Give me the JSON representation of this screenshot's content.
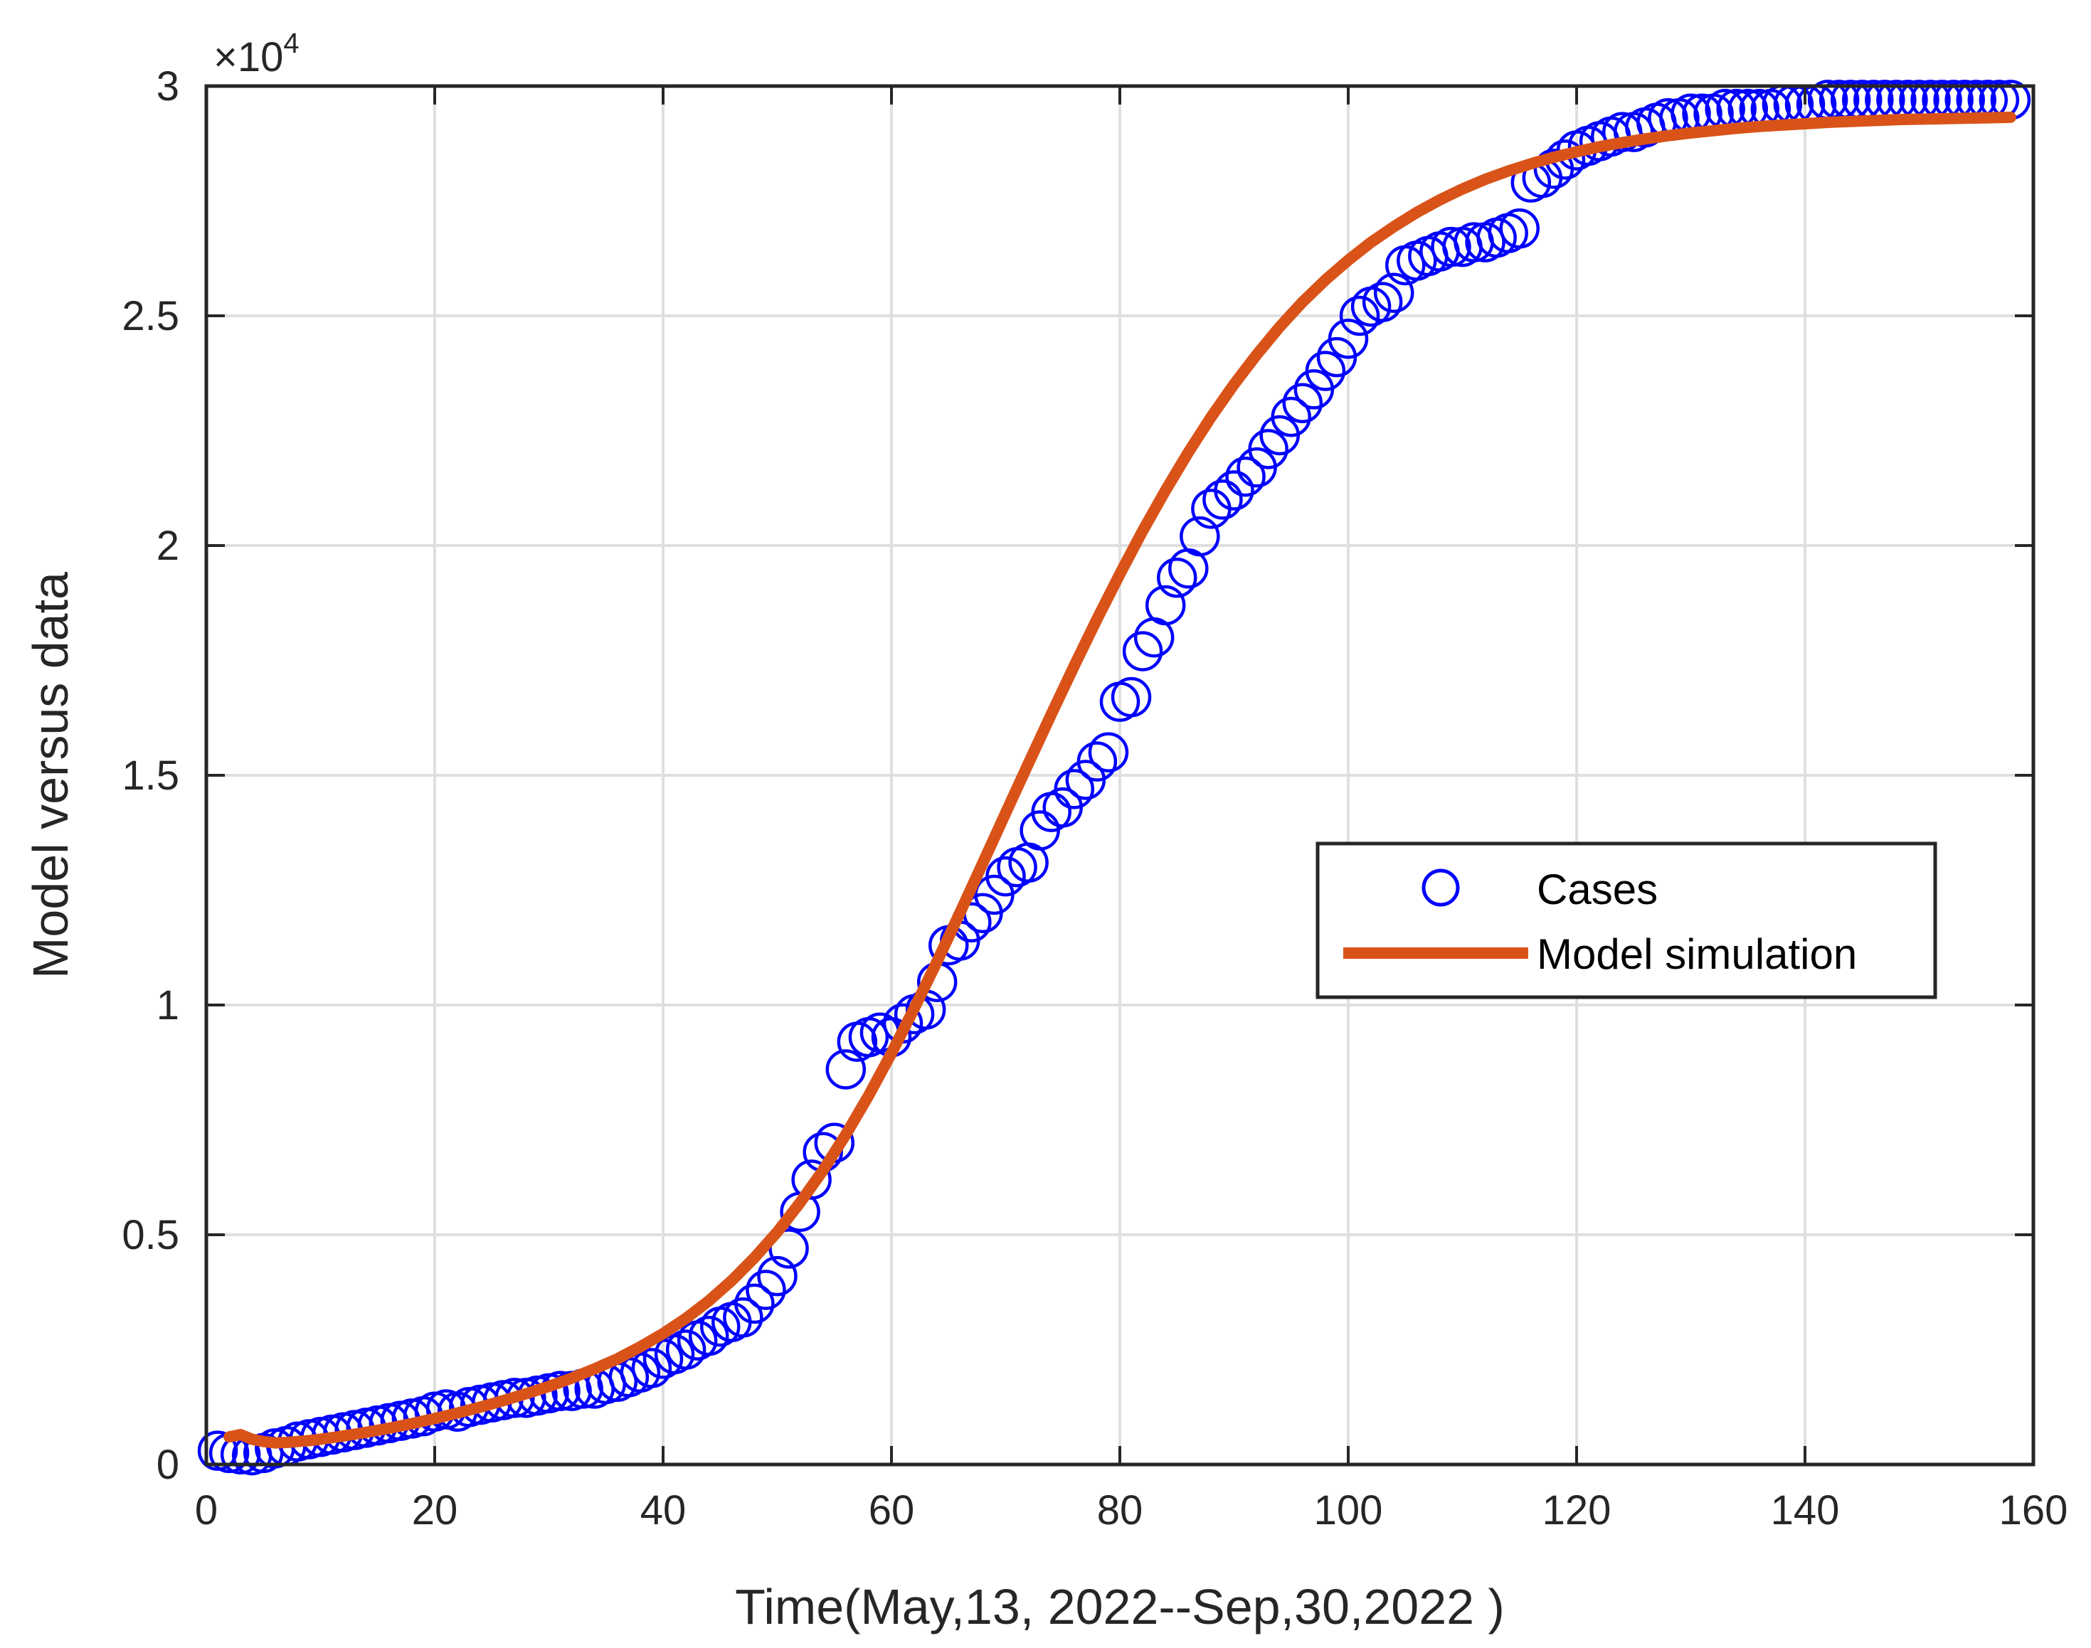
{
  "chart_data": {
    "type": "line",
    "xlabel": "Time(May,13, 2022--Sep,30,2022 )",
    "ylabel": "Model versus data",
    "xlim": [
      0,
      160
    ],
    "ylim": [
      0,
      30000
    ],
    "xticks": [
      0,
      20,
      40,
      60,
      80,
      100,
      120,
      140,
      160
    ],
    "xtick_labels": [
      "0",
      "20",
      "40",
      "60",
      "80",
      "100",
      "120",
      "140",
      "160"
    ],
    "yticks": [
      0,
      5000,
      10000,
      15000,
      20000,
      25000,
      30000
    ],
    "ytick_labels": [
      "0",
      "0.5",
      "1",
      "1.5",
      "2",
      "2.5",
      "3"
    ],
    "y_exponent": {
      "base": "×10",
      "power": "4"
    },
    "grid": true,
    "legend": {
      "location": "center-right"
    },
    "series": [
      {
        "name": "Cases",
        "style": "markers",
        "marker": "circle",
        "color": "#0000ff",
        "x": [
          1,
          2,
          3,
          4,
          5,
          6,
          7,
          8,
          9,
          10,
          11,
          12,
          13,
          14,
          15,
          16,
          17,
          18,
          19,
          20,
          21,
          22,
          23,
          24,
          25,
          26,
          27,
          28,
          29,
          30,
          31,
          32,
          33,
          34,
          35,
          36,
          37,
          38,
          39,
          40,
          41,
          42,
          43,
          44,
          45,
          46,
          47,
          48,
          49,
          50,
          51,
          52,
          53,
          54,
          55,
          56,
          57,
          58,
          59,
          60,
          61,
          62,
          63,
          64,
          65,
          66,
          67,
          68,
          69,
          70,
          71,
          72,
          73,
          74,
          75,
          76,
          77,
          78,
          79,
          80,
          81,
          82,
          83,
          84,
          85,
          86,
          87,
          88,
          89,
          90,
          91,
          92,
          93,
          94,
          95,
          96,
          97,
          98,
          99,
          100,
          101,
          102,
          103,
          104,
          105,
          106,
          107,
          108,
          109,
          110,
          111,
          112,
          113,
          114,
          115,
          116,
          117,
          118,
          119,
          120,
          121,
          122,
          123,
          124,
          125,
          126,
          127,
          128,
          129,
          130,
          131,
          132,
          133,
          134,
          135,
          136,
          137,
          138,
          139,
          140,
          141,
          142,
          143,
          144,
          145,
          146,
          147,
          148,
          149,
          150,
          151,
          152,
          153,
          154,
          155,
          156,
          157,
          158
        ],
        "y": [
          300,
          250,
          220,
          200,
          250,
          350,
          400,
          500,
          550,
          600,
          650,
          700,
          750,
          800,
          850,
          900,
          950,
          1000,
          1050,
          1150,
          1200,
          1150,
          1250,
          1300,
          1350,
          1400,
          1450,
          1450,
          1500,
          1550,
          1600,
          1600,
          1650,
          1650,
          1750,
          1800,
          1900,
          2000,
          2100,
          2300,
          2400,
          2500,
          2700,
          2800,
          3000,
          3100,
          3200,
          3500,
          3800,
          4100,
          4700,
          5500,
          6200,
          6800,
          7000,
          8600,
          9200,
          9300,
          9400,
          9300,
          9600,
          9800,
          9900,
          10500,
          11300,
          11400,
          11800,
          12000,
          12400,
          12800,
          13000,
          13100,
          13800,
          14200,
          14300,
          14700,
          14900,
          15300,
          15500,
          16600,
          16700,
          17700,
          18000,
          18700,
          19300,
          19500,
          20200,
          20800,
          21000,
          21200,
          21500,
          21700,
          22100,
          22400,
          22800,
          23100,
          23400,
          23800,
          24100,
          24500,
          25000,
          25200,
          25300,
          25500,
          26100,
          26200,
          26300,
          26400,
          26500,
          26500,
          26600,
          26600,
          26700,
          26800,
          26900,
          27900,
          28000,
          28200,
          28400,
          28600,
          28700,
          28800,
          28900,
          29000,
          29000,
          29100,
          29200,
          29300,
          29300,
          29400,
          29400,
          29400,
          29500,
          29500,
          29500,
          29500,
          29500,
          29600,
          29600,
          29600,
          29600,
          29700,
          29700,
          29700,
          29700,
          29700,
          29700,
          29700,
          29700,
          29700,
          29700,
          29700,
          29700,
          29700,
          29700,
          29700,
          29700,
          29700
        ]
      },
      {
        "name": "Model simulation",
        "style": "line",
        "color": "#d95319",
        "x": [
          2,
          3,
          4,
          5,
          6,
          7,
          8,
          9,
          10,
          12,
          14,
          16,
          18,
          20,
          22,
          24,
          26,
          28,
          30,
          32,
          34,
          36,
          38,
          40,
          42,
          44,
          46,
          48,
          50,
          52,
          54,
          56,
          58,
          60,
          62,
          64,
          66,
          68,
          70,
          72,
          74,
          76,
          78,
          80,
          82,
          84,
          86,
          88,
          90,
          92,
          94,
          96,
          98,
          100,
          102,
          104,
          106,
          108,
          110,
          112,
          114,
          116,
          118,
          120,
          122,
          124,
          126,
          128,
          130,
          132,
          134,
          136,
          138,
          140,
          142,
          144,
          146,
          148,
          150,
          152,
          154,
          156,
          158
        ],
        "y": [
          600,
          650,
          550,
          500,
          470,
          480,
          500,
          520,
          550,
          620,
          700,
          790,
          890,
          1000,
          1120,
          1250,
          1390,
          1540,
          1700,
          1880,
          2080,
          2300,
          2560,
          2850,
          3180,
          3560,
          4000,
          4500,
          5060,
          5700,
          6400,
          7180,
          8030,
          8950,
          9930,
          10950,
          12010,
          13090,
          14180,
          15260,
          16330,
          17380,
          18400,
          19380,
          20320,
          21200,
          22030,
          22800,
          23510,
          24160,
          24760,
          25300,
          25780,
          26210,
          26600,
          26940,
          27250,
          27520,
          27760,
          27970,
          28150,
          28310,
          28450,
          28570,
          28680,
          28770,
          28850,
          28920,
          28980,
          29030,
          29080,
          29120,
          29150,
          29180,
          29210,
          29230,
          29250,
          29270,
          29280,
          29290,
          29300,
          29310,
          29320
        ]
      }
    ]
  }
}
